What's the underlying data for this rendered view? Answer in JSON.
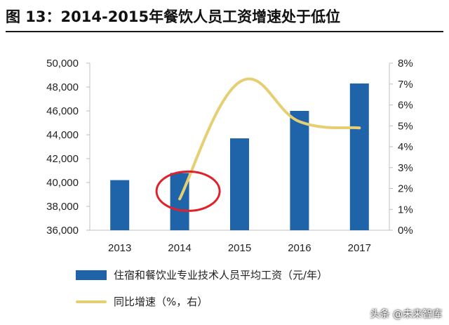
{
  "title": "图 13：2014-2015年餐饮人员工资增速处于低位",
  "watermark": "头条 @未来智库",
  "colors": {
    "bar": "#1f64a8",
    "line": "#e6cf72",
    "highlight_circle": "#e0202a",
    "axis": "#bfbfbf"
  },
  "chart_data": {
    "type": "bar+line",
    "categories": [
      "2013",
      "2014",
      "2015",
      "2016",
      "2017"
    ],
    "series": [
      {
        "name": "住宿和餐饮业专业技术人员平均工资（元/年）",
        "type": "bar",
        "axis": "left",
        "values": [
          40200,
          40800,
          43700,
          46000,
          48300
        ]
      },
      {
        "name": "同比增速（%，右）",
        "type": "line",
        "axis": "right",
        "values": [
          null,
          1.5,
          7.1,
          5.2,
          4.9
        ]
      }
    ],
    "y_left": {
      "range": [
        36000,
        50000
      ],
      "ticks": [
        "36,000",
        "38,000",
        "40,000",
        "42,000",
        "44,000",
        "46,000",
        "48,000",
        "50,000"
      ]
    },
    "y_right": {
      "range": [
        0,
        8
      ],
      "ticks": [
        "0%",
        "1%",
        "2%",
        "3%",
        "4%",
        "5%",
        "6%",
        "7%",
        "8%"
      ]
    },
    "annotations": [
      {
        "type": "circle",
        "category": "2014",
        "note": "highlight of the low 2014 growth point"
      }
    ],
    "grid": false,
    "legend_position": "bottom"
  }
}
